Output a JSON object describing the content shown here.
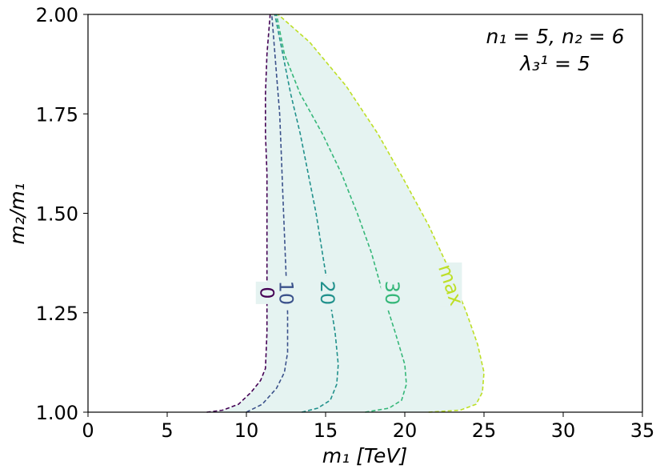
{
  "chart_data": {
    "type": "line",
    "xlabel": "m₁ [TeV]",
    "ylabel": "m₂/m₁",
    "xlim": [
      0,
      35
    ],
    "ylim": [
      1.0,
      2.0
    ],
    "xticks": [
      0,
      5,
      10,
      15,
      20,
      25,
      30,
      35
    ],
    "yticks": [
      1.0,
      1.25,
      1.5,
      1.75,
      2.0
    ],
    "xtick_labels": [
      "0",
      "5",
      "10",
      "15",
      "20",
      "25",
      "30",
      "35"
    ],
    "ytick_labels": [
      "1.00",
      "1.25",
      "1.50",
      "1.75",
      "2.00"
    ],
    "grid": false,
    "annotation": {
      "line1": "n₁ = 5, n₂ = 6",
      "line2": "λ₃¹ = 5"
    },
    "shaded_region": {
      "between": [
        "0",
        "max"
      ],
      "color": "#e5f3f1"
    },
    "series": [
      {
        "name": "0",
        "color": "#440154",
        "label_at": [
          11.3,
          1.3
        ],
        "x": [
          7.5,
          8.5,
          9.5,
          10.3,
          10.9,
          11.2,
          11.3,
          11.3,
          11.3,
          11.3,
          11.3,
          11.2,
          11.2,
          11.3,
          11.5
        ],
        "y": [
          1.0,
          1.005,
          1.02,
          1.05,
          1.08,
          1.11,
          1.2,
          1.3,
          1.4,
          1.5,
          1.6,
          1.7,
          1.8,
          1.9,
          2.0
        ]
      },
      {
        "name": "10",
        "color": "#3b528b",
        "label_at": [
          12.5,
          1.3
        ],
        "x": [
          10.0,
          11.0,
          11.9,
          12.4,
          12.6,
          12.6,
          12.5,
          12.4,
          12.3,
          12.2,
          12.1,
          11.9,
          11.7,
          11.6
        ],
        "y": [
          1.0,
          1.02,
          1.06,
          1.1,
          1.15,
          1.25,
          1.35,
          1.45,
          1.55,
          1.65,
          1.75,
          1.85,
          1.95,
          2.0
        ]
      },
      {
        "name": "20",
        "color": "#21918c",
        "label_at": [
          15.1,
          1.3
        ],
        "x": [
          13.5,
          14.5,
          15.3,
          15.7,
          15.8,
          15.6,
          15.2,
          14.8,
          14.4,
          13.9,
          13.4,
          12.8,
          12.3,
          11.8
        ],
        "y": [
          1.0,
          1.01,
          1.03,
          1.07,
          1.12,
          1.2,
          1.3,
          1.4,
          1.5,
          1.6,
          1.7,
          1.8,
          1.9,
          2.0
        ]
      },
      {
        "name": "30",
        "color": "#35b779",
        "label_at": [
          19.2,
          1.3
        ],
        "x": [
          17.5,
          19.0,
          19.8,
          20.1,
          20.0,
          19.4,
          18.6,
          17.9,
          17.0,
          16.0,
          14.8,
          13.4,
          12.4,
          11.9
        ],
        "y": [
          1.0,
          1.01,
          1.03,
          1.07,
          1.12,
          1.2,
          1.3,
          1.4,
          1.5,
          1.6,
          1.7,
          1.8,
          1.9,
          2.0
        ]
      },
      {
        "name": "max",
        "color": "#bddf26",
        "label_at": [
          22.9,
          1.32
        ],
        "x": [
          21.5,
          23.5,
          24.5,
          24.9,
          25.0,
          24.6,
          23.9,
          22.9,
          21.5,
          20.0,
          18.3,
          16.3,
          14.0,
          12.0
        ],
        "y": [
          1.0,
          1.005,
          1.02,
          1.05,
          1.1,
          1.17,
          1.25,
          1.35,
          1.47,
          1.58,
          1.7,
          1.82,
          1.93,
          2.0
        ]
      }
    ]
  }
}
